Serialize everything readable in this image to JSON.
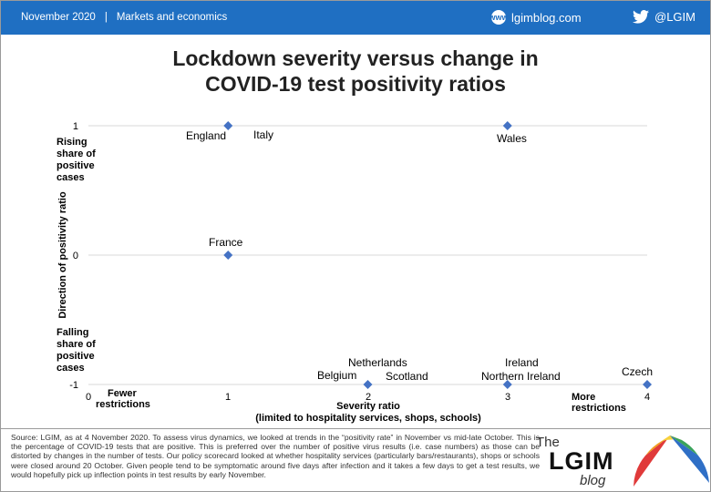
{
  "header": {
    "date": "November 2020",
    "separator": "|",
    "section": "Markets and economics",
    "site": "lgimblog.com",
    "social": "@LGIM",
    "bar_color": "#1f6fc2"
  },
  "chart_data": {
    "type": "scatter",
    "title_line1": "Lockdown severity versus change in",
    "title_line2": "COVID-19 test positivity ratios",
    "xlabel_line1": "Severity ratio",
    "xlabel_line2": "(limited to hospitality services, shops, schools)",
    "ylabel": "Direction of positivity ratio",
    "xlim": [
      0,
      4
    ],
    "ylim": [
      -1,
      1
    ],
    "x_ticks": [
      "0",
      "1",
      "2",
      "3",
      "4"
    ],
    "y_ticks": [
      "-1",
      "0",
      "1"
    ],
    "grid": "horizontal",
    "marker_color": "#4472c4",
    "x_annotations": {
      "left_line1": "Fewer",
      "left_line2": "restrictions",
      "right_line1": "More",
      "right_line2": "restrictions"
    },
    "y_annotations": {
      "top": [
        "Rising",
        "share of",
        "positive",
        "cases"
      ],
      "bottom": [
        "Falling",
        "share of",
        "positive",
        "cases"
      ]
    },
    "points": [
      {
        "x": 1,
        "y": 1
      },
      {
        "x": 3,
        "y": 1
      },
      {
        "x": 1,
        "y": 0
      },
      {
        "x": 2,
        "y": -1
      },
      {
        "x": 3,
        "y": -1
      },
      {
        "x": 4,
        "y": -1
      }
    ],
    "point_labels": [
      "England",
      "Italy",
      "Wales",
      "France",
      "Netherlands",
      "Belgium",
      "Scotland",
      "Ireland",
      "Northern Ireland",
      "Czech"
    ]
  },
  "footnote": {
    "text": "Source: LGIM, as at 4 November 2020. To assess virus dynamics, we looked at trends in the “positivity rate” in November vs mid-late October. This is the percentage of COVID-19 tests that are positive. This is preferred over the number of positive virus results (i.e. case numbers) as those can be distorted by changes in the number of tests. Our policy scorecard looked at whether hospitality services (particularly bars/restaurants), shops or schools were closed around 20 October. Given people tend to be symptomatic around five days after infection and it takes a few days to get a test results, we would hopefully pick up inflection points in test results by early November."
  },
  "logo": {
    "the": "The",
    "main": "LGIM",
    "blog": "blog"
  }
}
